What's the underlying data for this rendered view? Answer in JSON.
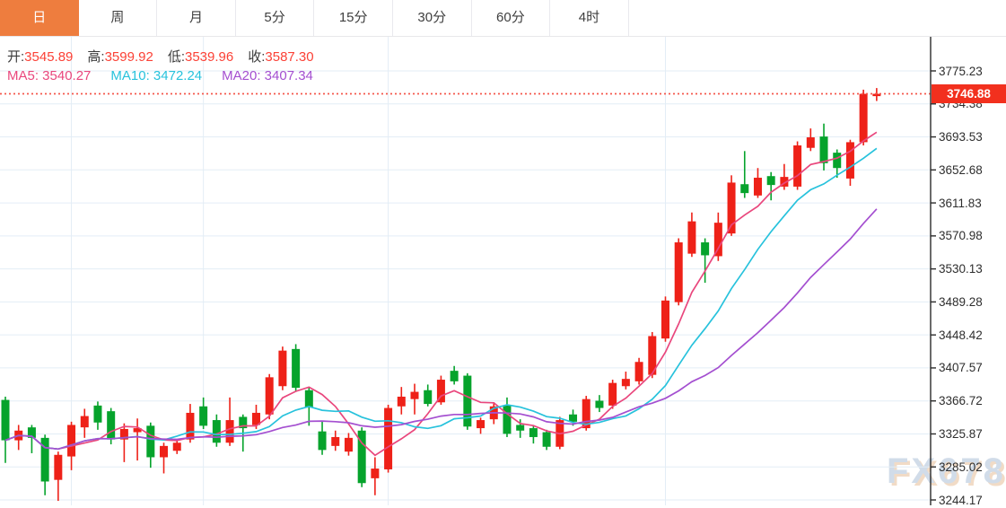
{
  "tabbar": {
    "active_bg": "#ee7d3e",
    "tabs": [
      {
        "key": "day",
        "label": "日",
        "active": true
      },
      {
        "key": "week",
        "label": "周",
        "active": false
      },
      {
        "key": "month",
        "label": "月",
        "active": false
      },
      {
        "key": "m5",
        "label": "5分",
        "active": false
      },
      {
        "key": "m15",
        "label": "15分",
        "active": false
      },
      {
        "key": "m30",
        "label": "30分",
        "active": false
      },
      {
        "key": "m60",
        "label": "60分",
        "active": false
      },
      {
        "key": "h4",
        "label": "4时",
        "active": false
      }
    ]
  },
  "legend": {
    "ohlc_value_color": "#fb4136",
    "ohlc": [
      {
        "label": "开:",
        "value": "3545.89"
      },
      {
        "label": "高:",
        "value": "3599.92"
      },
      {
        "label": "低:",
        "value": "3539.96"
      },
      {
        "label": "收:",
        "value": "3587.30"
      }
    ],
    "ma": [
      {
        "label": "MA5:",
        "value": "3540.27"
      },
      {
        "label": "MA10:",
        "value": "3472.24"
      },
      {
        "label": "MA20:",
        "value": "3407.34"
      }
    ]
  },
  "watermark": "FX678",
  "chart_data": {
    "type": "candlestick",
    "timeframe": "日",
    "title": "",
    "last_price": "3746.88",
    "y_axis_ticks": [
      "3775.23",
      "3734.38",
      "3693.53",
      "3652.68",
      "3611.83",
      "3570.98",
      "3530.13",
      "3489.28",
      "3448.42",
      "3407.57",
      "3366.72",
      "3325.87",
      "3285.02",
      "3244.17"
    ],
    "y_tick_step": 40.85,
    "colors": {
      "up": "#ee2118",
      "down": "#06a32c",
      "last_price_line": "#f5564b",
      "last_price_badge": "#f2301e",
      "grid": "#e3edf6",
      "axis": "#2b2b2b"
    },
    "overlays": [
      {
        "name": "MA5",
        "period": 5,
        "color": "#e9477d"
      },
      {
        "name": "MA10",
        "period": 10,
        "color": "#27c2dc"
      },
      {
        "name": "MA20",
        "period": 20,
        "color": "#a44fd0"
      }
    ],
    "month_gridline_indices": [
      5,
      15,
      29,
      50
    ],
    "candles_ohlc": [
      [
        3368,
        3372,
        3290,
        3318
      ],
      [
        3318,
        3337,
        3306,
        3330
      ],
      [
        3334,
        3337,
        3302,
        3321
      ],
      [
        3321,
        3325,
        3250,
        3267
      ],
      [
        3269,
        3304,
        3243,
        3300
      ],
      [
        3298,
        3341,
        3281,
        3337
      ],
      [
        3334,
        3357,
        3321,
        3348
      ],
      [
        3361,
        3366,
        3331,
        3340
      ],
      [
        3354,
        3358,
        3313,
        3319
      ],
      [
        3319,
        3339,
        3291,
        3332
      ],
      [
        3328,
        3345,
        3293,
        3333
      ],
      [
        3336,
        3340,
        3284,
        3297
      ],
      [
        3297,
        3315,
        3277,
        3311
      ],
      [
        3305,
        3319,
        3301,
        3315
      ],
      [
        3319,
        3363,
        3315,
        3352
      ],
      [
        3360,
        3371,
        3332,
        3336
      ],
      [
        3343,
        3350,
        3310,
        3315
      ],
      [
        3315,
        3371,
        3311,
        3343
      ],
      [
        3347,
        3350,
        3304,
        3333
      ],
      [
        3337,
        3362,
        3332,
        3352
      ],
      [
        3350,
        3400,
        3344,
        3396
      ],
      [
        3385,
        3434,
        3380,
        3429
      ],
      [
        3431,
        3437,
        3378,
        3383
      ],
      [
        3380,
        3384,
        3336,
        3359
      ],
      [
        3329,
        3341,
        3300,
        3306
      ],
      [
        3311,
        3330,
        3305,
        3322
      ],
      [
        3304,
        3327,
        3299,
        3321
      ],
      [
        3330,
        3334,
        3260,
        3265
      ],
      [
        3271,
        3297,
        3250,
        3283
      ],
      [
        3282,
        3362,
        3278,
        3358
      ],
      [
        3360,
        3384,
        3350,
        3372
      ],
      [
        3369,
        3388,
        3350,
        3378
      ],
      [
        3380,
        3387,
        3360,
        3363
      ],
      [
        3365,
        3398,
        3362,
        3393
      ],
      [
        3404,
        3410,
        3387,
        3391
      ],
      [
        3398,
        3401,
        3331,
        3335
      ],
      [
        3333,
        3346,
        3326,
        3343
      ],
      [
        3344,
        3365,
        3338,
        3360
      ],
      [
        3361,
        3371,
        3322,
        3326
      ],
      [
        3337,
        3344,
        3321,
        3330
      ],
      [
        3333,
        3337,
        3314,
        3322
      ],
      [
        3328,
        3331,
        3306,
        3310
      ],
      [
        3310,
        3347,
        3307,
        3343
      ],
      [
        3350,
        3356,
        3336,
        3341
      ],
      [
        3333,
        3373,
        3330,
        3369
      ],
      [
        3367,
        3374,
        3353,
        3358
      ],
      [
        3361,
        3393,
        3357,
        3389
      ],
      [
        3385,
        3403,
        3381,
        3394
      ],
      [
        3391,
        3420,
        3387,
        3415
      ],
      [
        3399,
        3452,
        3395,
        3447
      ],
      [
        3444,
        3496,
        3440,
        3491
      ],
      [
        3489,
        3568,
        3485,
        3563
      ],
      [
        3549,
        3600,
        3545,
        3589
      ],
      [
        3563,
        3568,
        3513,
        3547
      ],
      [
        3545.89,
        3599.92,
        3539.96,
        3587.3
      ],
      [
        3574,
        3646,
        3571,
        3637
      ],
      [
        3635,
        3676,
        3618,
        3624
      ],
      [
        3621,
        3655,
        3618,
        3643
      ],
      [
        3645,
        3650,
        3615,
        3634
      ],
      [
        3632,
        3660,
        3628,
        3644
      ],
      [
        3632,
        3688,
        3628,
        3683
      ],
      [
        3680,
        3704,
        3676,
        3693
      ],
      [
        3694,
        3710,
        3652,
        3661
      ],
      [
        3674,
        3678,
        3643,
        3655
      ],
      [
        3642,
        3690,
        3633,
        3687
      ],
      [
        3687,
        3752,
        3683,
        3746.88
      ],
      [
        3744,
        3754,
        3738,
        3746.88
      ]
    ]
  }
}
